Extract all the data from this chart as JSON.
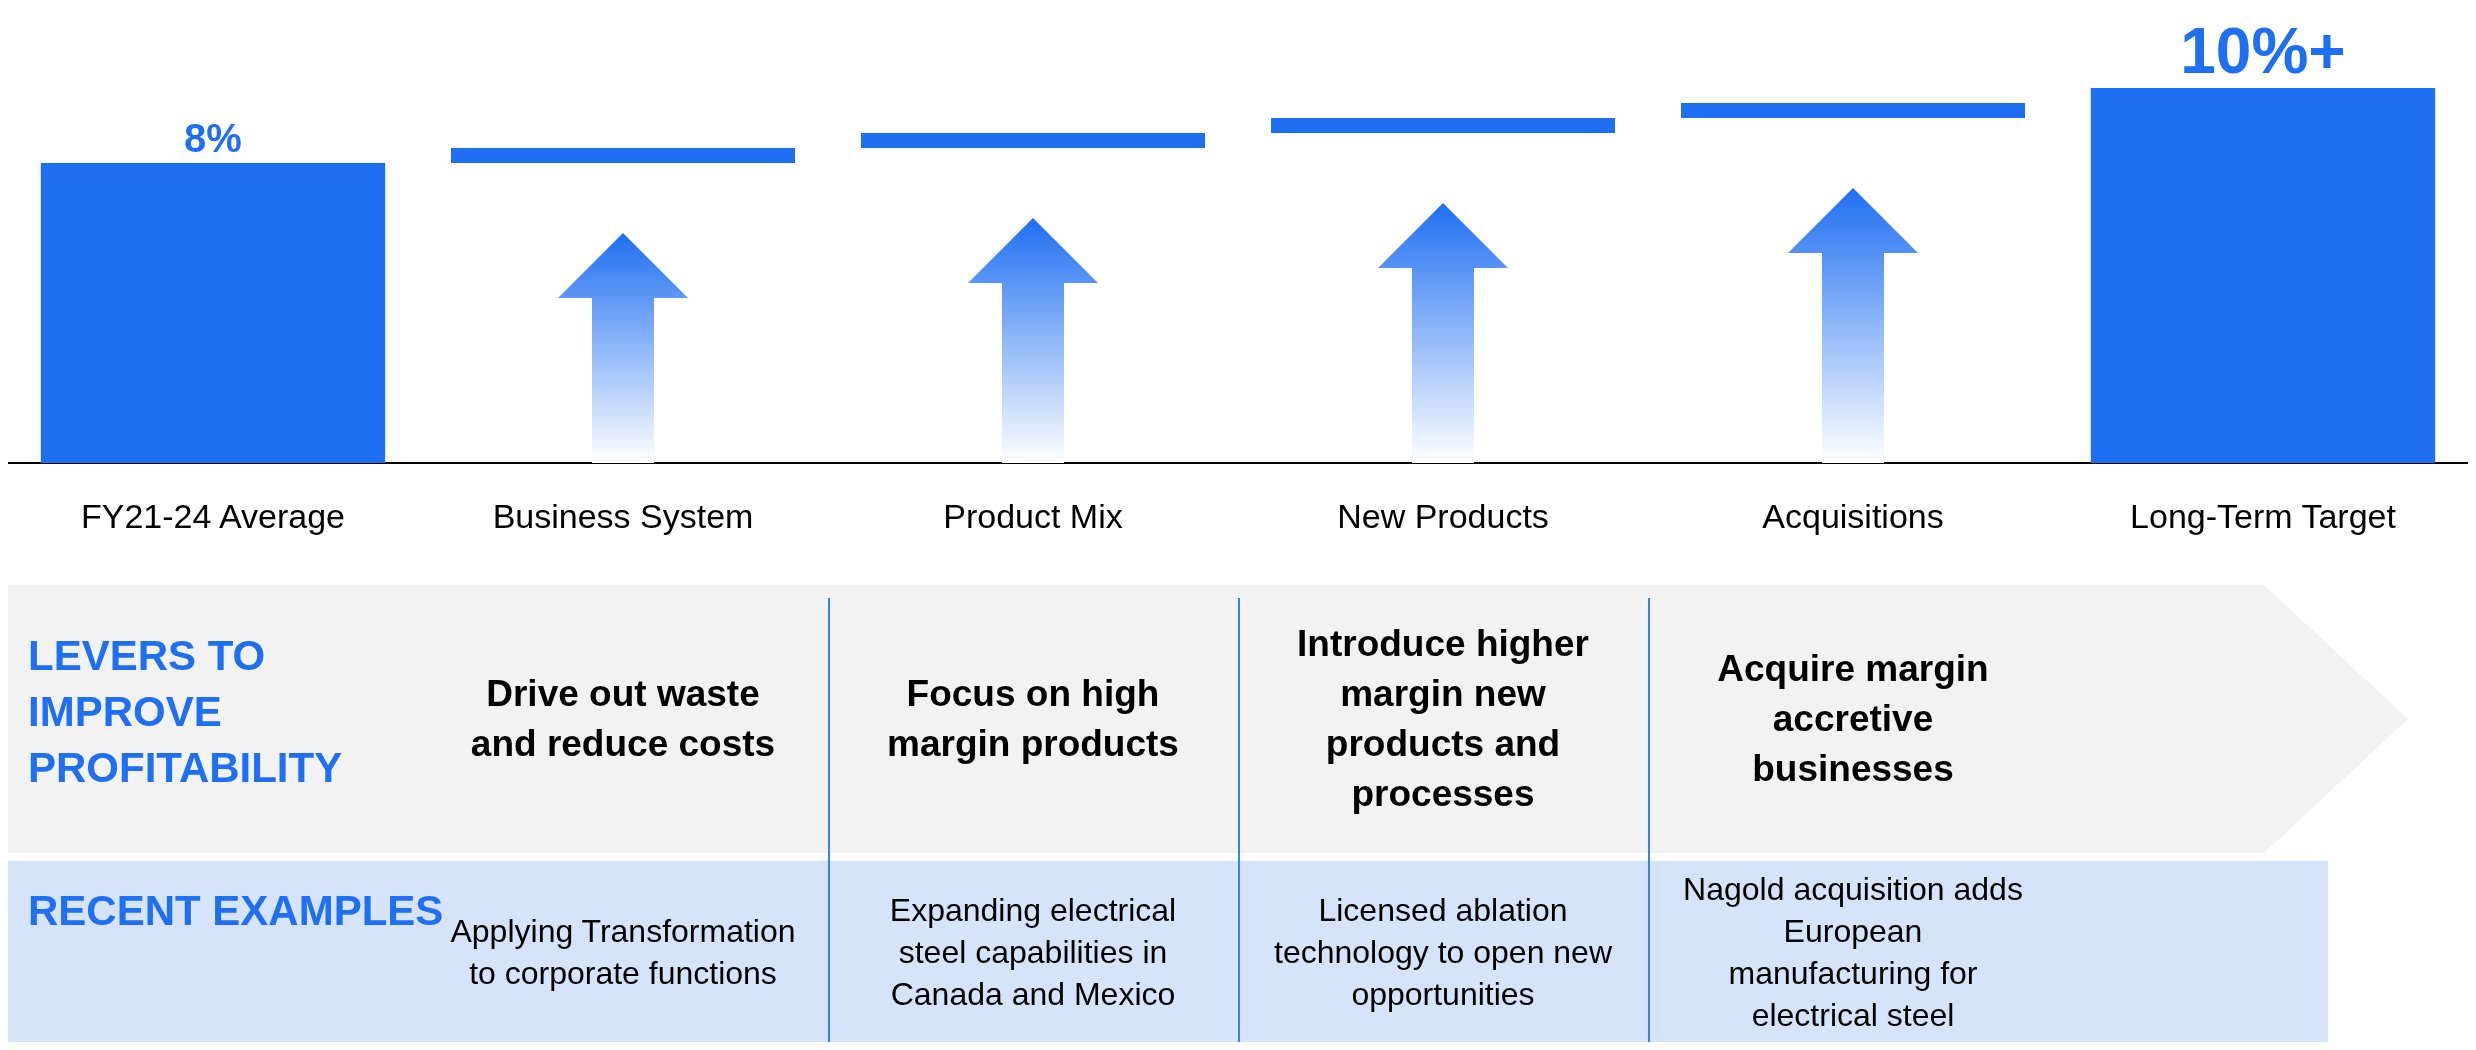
{
  "chart_data": {
    "type": "bar",
    "categories": [
      "FY21-24 Average",
      "Business System",
      "Product Mix",
      "New Products",
      "Acquisitions",
      "Long-Term Target"
    ],
    "values": [
      8,
      null,
      null,
      null,
      null,
      10
    ],
    "value_labels": [
      "8%",
      null,
      null,
      null,
      null,
      "10%+"
    ],
    "color": "#1f6ff2",
    "annotations": [
      "LEVERS TO IMPROVE PROFITABILITY",
      "Drive out waste and reduce costs",
      "Focus on high margin products",
      "Introduce higher margin new products and processes",
      "Acquire margin accretive businesses",
      "RECENT EXAMPLES",
      "Applying Transformation to corporate functions",
      "Expanding electrical steel capabilities in Canada and Mexico",
      "Licensed ablation technology to open new opportunities",
      "Nagold acquisition adds European manufacturing for electrical steel"
    ]
  }
}
